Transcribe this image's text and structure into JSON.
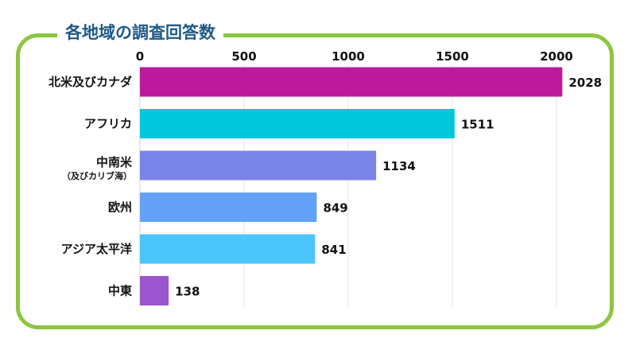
{
  "chart_data": {
    "type": "bar",
    "orientation": "horizontal",
    "title": "各地域の調査回答数",
    "categories": [
      {
        "label": "北米及びカナダ",
        "sublabel": ""
      },
      {
        "label": "アフリカ",
        "sublabel": ""
      },
      {
        "label": "中南米",
        "sublabel": "（及びカリブ海）"
      },
      {
        "label": "欧州",
        "sublabel": ""
      },
      {
        "label": "アジア太平洋",
        "sublabel": ""
      },
      {
        "label": "中東",
        "sublabel": ""
      }
    ],
    "values": [
      2028,
      1511,
      1134,
      849,
      841,
      138
    ],
    "colors": [
      "#bc1a9b",
      "#00c8dc",
      "#7b84e8",
      "#64a2f7",
      "#4cc4fc",
      "#9b55cf"
    ],
    "xlim": [
      0,
      2250
    ],
    "xticks": [
      0,
      500,
      1000,
      1500,
      2000
    ],
    "xtick_labels": [
      "0",
      "500",
      "1000",
      "1500",
      "2000"
    ],
    "grid": true,
    "axis_position": "top",
    "legend": "none"
  },
  "frame_color": "#8dc63f",
  "title_color": "#1e5a87"
}
